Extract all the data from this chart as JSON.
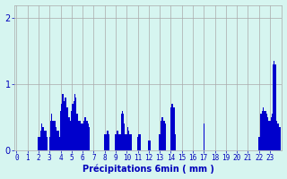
{
  "title": "",
  "xlabel": "Précipitations 6min ( mm )",
  "background_color": "#d6f5f0",
  "bar_color": "#0000cc",
  "grid_color": "#aaaaaa",
  "text_color": "#0000bb",
  "ylim": [
    0,
    2.2
  ],
  "yticks": [
    0,
    1,
    2
  ],
  "hours": 24,
  "bars_per_hour": 10,
  "values": [
    0,
    0,
    0,
    0,
    0,
    0,
    0,
    0,
    0,
    0,
    0,
    0,
    0,
    0,
    0,
    0,
    0,
    0,
    0,
    0,
    0.2,
    0.2,
    0.3,
    0.4,
    0.35,
    0.3,
    0.3,
    0.3,
    0.2,
    0,
    0.2,
    0.45,
    0.55,
    0.45,
    0.45,
    0.45,
    0.35,
    0.3,
    0.3,
    0.2,
    0.6,
    0.7,
    0.85,
    0.75,
    0.8,
    0.8,
    0.65,
    0.5,
    0.5,
    0.45,
    0.6,
    0.7,
    0.75,
    0.85,
    0.8,
    0.55,
    0.45,
    0.45,
    0.45,
    0.4,
    0.4,
    0.45,
    0.5,
    0.5,
    0.45,
    0.4,
    0.35,
    0,
    0,
    0,
    0,
    0,
    0,
    0,
    0,
    0,
    0,
    0,
    0,
    0,
    0.25,
    0.25,
    0.3,
    0.3,
    0.25,
    0,
    0,
    0,
    0,
    0,
    0.25,
    0.3,
    0.3,
    0.25,
    0.25,
    0.55,
    0.6,
    0.55,
    0.4,
    0.25,
    0.25,
    0.35,
    0.3,
    0.25,
    0.25,
    0,
    0,
    0,
    0,
    0,
    0.2,
    0.25,
    0.25,
    0,
    0,
    0,
    0,
    0,
    0,
    0,
    0.15,
    0.15,
    0,
    0,
    0,
    0,
    0,
    0,
    0,
    0,
    0.25,
    0.45,
    0.5,
    0.5,
    0.45,
    0.4,
    0,
    0,
    0,
    0,
    0.65,
    0.7,
    0.7,
    0.65,
    0.25,
    0,
    0,
    0,
    0,
    0,
    0,
    0,
    0,
    0,
    0,
    0,
    0,
    0,
    0,
    0,
    0,
    0,
    0,
    0,
    0,
    0,
    0,
    0,
    0,
    0,
    0.4,
    0,
    0,
    0,
    0,
    0,
    0,
    0,
    0,
    0,
    0,
    0,
    0,
    0,
    0,
    0,
    0,
    0,
    0,
    0,
    0,
    0,
    0,
    0,
    0,
    0,
    0,
    0,
    0,
    0,
    0,
    0,
    0,
    0,
    0,
    0,
    0,
    0,
    0,
    0,
    0,
    0,
    0,
    0,
    0,
    0,
    0,
    0,
    0,
    0,
    0.2,
    0.2,
    0.55,
    0.6,
    0.65,
    0.6,
    0.6,
    0.55,
    0.5,
    0.45,
    0.45,
    0.5,
    0.55,
    1.3,
    1.35,
    1.3,
    0.45,
    0.4,
    0.4,
    0.35
  ],
  "xtick_labels": [
    "0",
    "1",
    "2",
    "3",
    "4",
    "5",
    "6",
    "7",
    "8",
    "9",
    "10",
    "11",
    "12",
    "13",
    "14",
    "15",
    "16",
    "17",
    "18",
    "19",
    "20",
    "21",
    "22",
    "23"
  ]
}
